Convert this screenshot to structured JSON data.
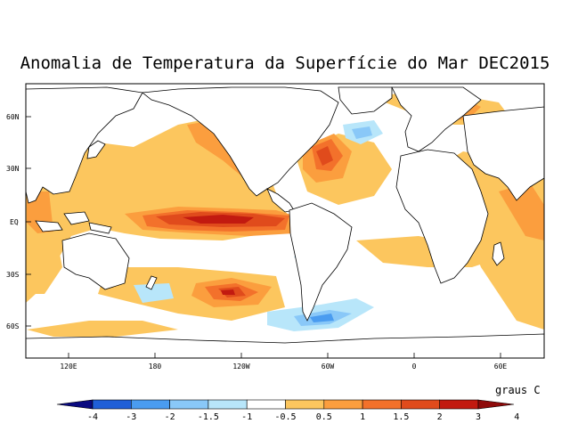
{
  "title": "Anomalia de Temperatura da Superfície do Mar DEC2015",
  "units": "graus C",
  "lat_labels": [
    "60N",
    "30N",
    "EQ",
    "30S",
    "60S"
  ],
  "lon_labels": [
    "120E",
    "180",
    "120W",
    "60W",
    "0",
    "60E"
  ],
  "legend": {
    "boundaries": [
      "-4",
      "-3",
      "-2",
      "-1.5",
      "-1",
      "-0.5",
      "0.5",
      "1",
      "1.5",
      "2",
      "3",
      "4"
    ],
    "colors": [
      "#0a0a80",
      "#1f5fd8",
      "#4a9cf0",
      "#89c8f8",
      "#b8e6fa",
      "#ffffff",
      "#fcc65e",
      "#fb9e3e",
      "#f3712b",
      "#e04b1c",
      "#c21a10",
      "#8e0a0a"
    ]
  },
  "colors": {
    "land": "#ffffff",
    "ocean_neutral": "#ffffff",
    "coastline": "#000000"
  }
}
